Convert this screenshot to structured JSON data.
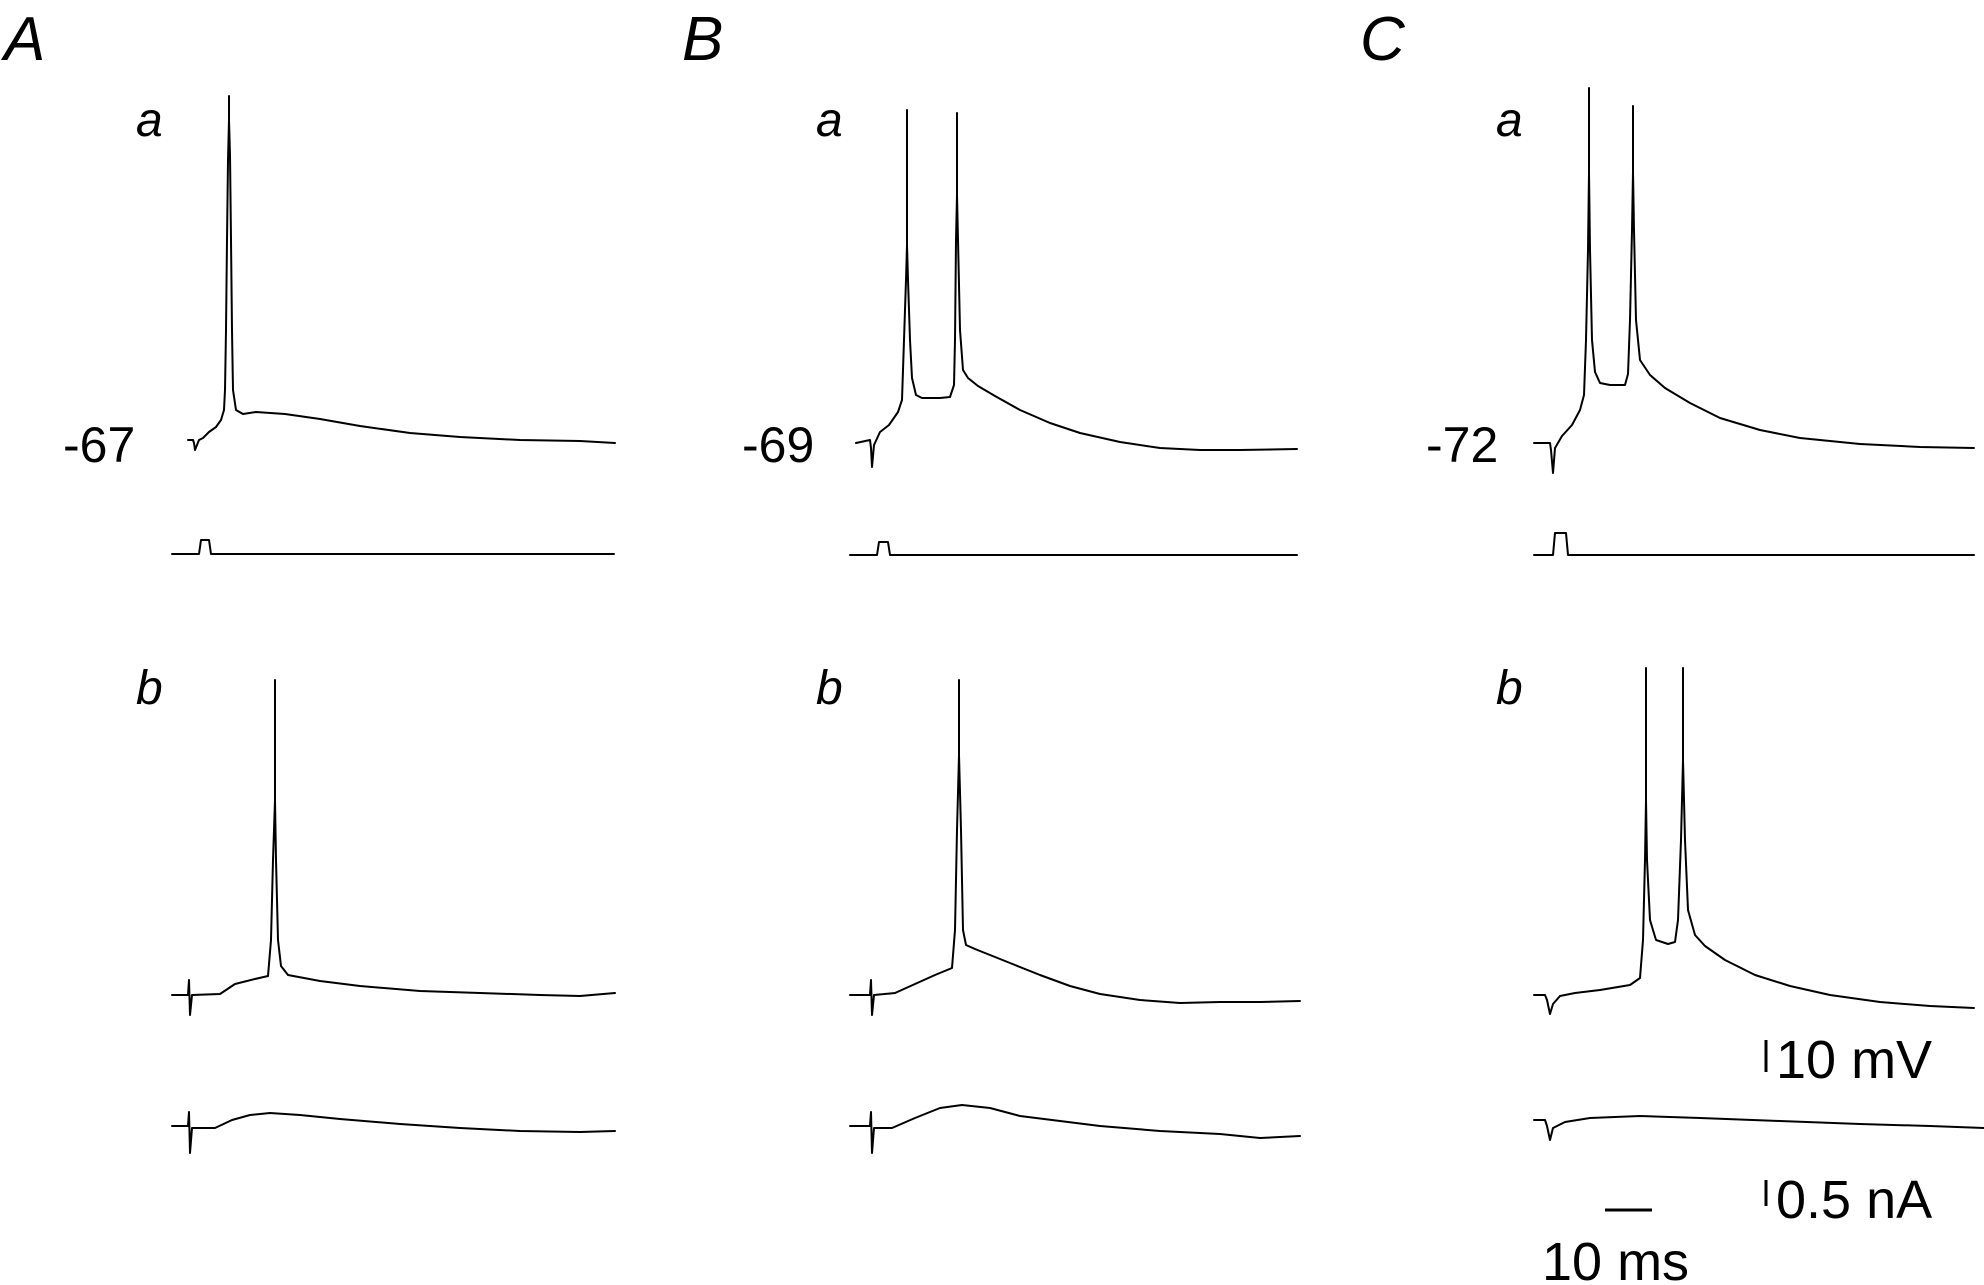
{
  "panels": [
    {
      "letter": "A",
      "sub_a": "a",
      "sub_b": "b",
      "resting_potential": "-67"
    },
    {
      "letter": "B",
      "sub_a": "a",
      "sub_b": "b",
      "resting_potential": "-69"
    },
    {
      "letter": "C",
      "sub_a": "a",
      "sub_b": "b",
      "resting_potential": "-72"
    }
  ],
  "scale_bars": {
    "voltage": "10 mV",
    "current": "0.5 nA",
    "time": "10 ms"
  },
  "colors": {
    "trace": "#000000",
    "background": "#ffffff"
  }
}
